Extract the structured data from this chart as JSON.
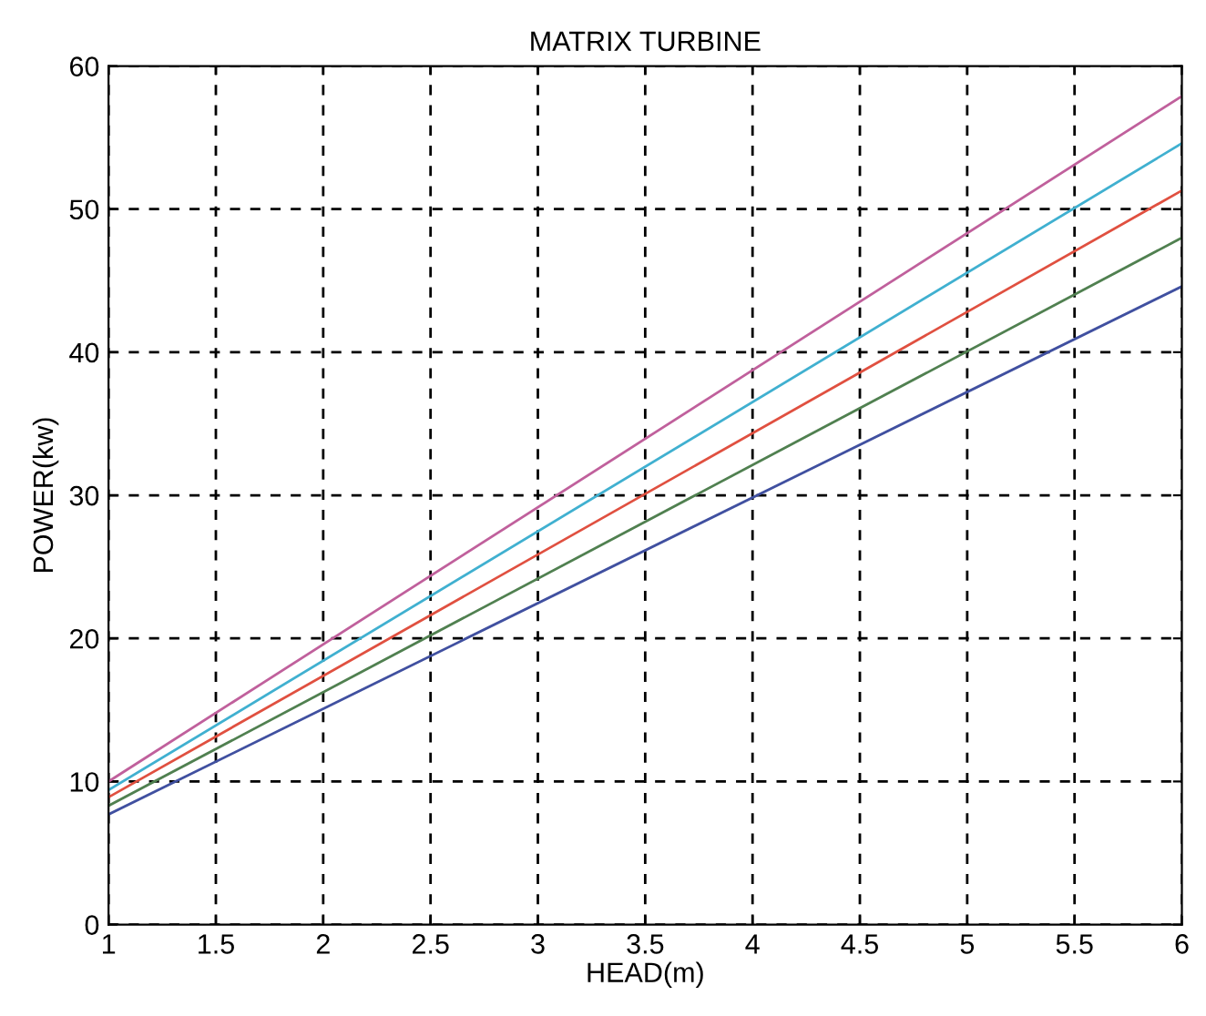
{
  "chart_data": {
    "type": "line",
    "title": "MATRIX TURBINE",
    "xlabel": "HEAD(m)",
    "ylabel": "POWER(kw)",
    "x": [
      1,
      6
    ],
    "series": [
      {
        "color": "#c0609c",
        "values": [
          10.0,
          57.9
        ]
      },
      {
        "color": "#40b0d0",
        "values": [
          9.4,
          54.6
        ]
      },
      {
        "color": "#e05040",
        "values": [
          8.9,
          51.3
        ]
      },
      {
        "color": "#508050",
        "values": [
          8.3,
          48.0
        ]
      },
      {
        "color": "#4050a0",
        "values": [
          7.7,
          44.6
        ]
      }
    ],
    "xlim": [
      1,
      6
    ],
    "ylim": [
      0,
      60
    ],
    "xticks": [
      1,
      1.5,
      2,
      2.5,
      3,
      3.5,
      4,
      4.5,
      5,
      5.5,
      6
    ],
    "yticks": [
      0,
      10,
      20,
      30,
      40,
      50,
      60
    ],
    "grid": true,
    "marker": "none",
    "line_style": "solid"
  }
}
